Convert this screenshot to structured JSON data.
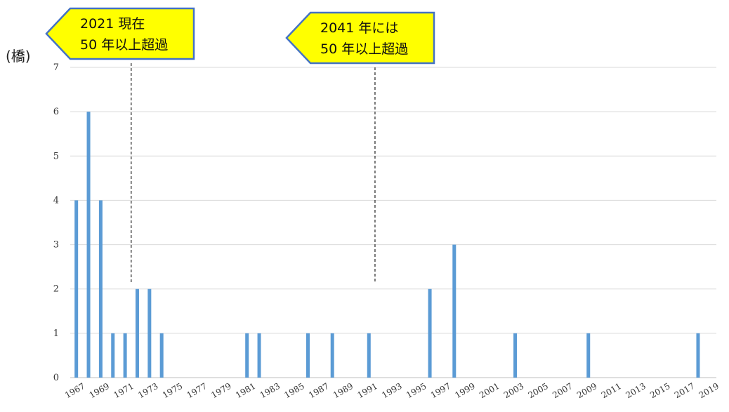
{
  "chart_data": {
    "type": "bar",
    "unit_label": "(橋)",
    "ylim": [
      0,
      7
    ],
    "yticks": [
      0,
      1,
      2,
      3,
      4,
      5,
      6,
      7
    ],
    "grid": true,
    "bar_color": "#5b9bd5",
    "categories": [
      1967,
      1968,
      1969,
      1970,
      1971,
      1972,
      1973,
      1974,
      1975,
      1976,
      1977,
      1978,
      1979,
      1980,
      1981,
      1982,
      1983,
      1984,
      1985,
      1986,
      1987,
      1988,
      1989,
      1990,
      1991,
      1992,
      1993,
      1994,
      1995,
      1996,
      1997,
      1998,
      1999,
      2000,
      2001,
      2002,
      2003,
      2004,
      2005,
      2006,
      2007,
      2008,
      2009,
      2010,
      2011,
      2012,
      2013,
      2014,
      2015,
      2016,
      2017,
      2018,
      2019
    ],
    "values": [
      4,
      6,
      4,
      1,
      1,
      2,
      2,
      1,
      0,
      0,
      0,
      0,
      0,
      0,
      1,
      1,
      0,
      0,
      0,
      1,
      0,
      1,
      0,
      0,
      1,
      0,
      0,
      0,
      0,
      2,
      0,
      3,
      0,
      0,
      0,
      0,
      1,
      0,
      0,
      0,
      0,
      0,
      1,
      0,
      0,
      0,
      0,
      0,
      0,
      0,
      0,
      1,
      0
    ],
    "xtick_labels": [
      "1967",
      "1969",
      "1971",
      "1973",
      "1975",
      "1977",
      "1979",
      "1981",
      "1983",
      "1985",
      "1987",
      "1989",
      "1991",
      "1993",
      "1995",
      "1997",
      "1999",
      "2001",
      "2003",
      "2005",
      "2007",
      "2009",
      "2011",
      "2013",
      "2015",
      "2017",
      "2019"
    ],
    "annotations": [
      {
        "line1": "2021 現在",
        "line2": "50 年以上超過",
        "at_year": 1971.5
      },
      {
        "line1": "2041 年には",
        "line2": "50 年以上超過",
        "at_year": 1991.5
      }
    ]
  },
  "colors": {
    "callout_fill": "#ffff00",
    "callout_border": "#4472c4",
    "grid": "#d9d9d9",
    "axis": "#bfbfbf"
  }
}
